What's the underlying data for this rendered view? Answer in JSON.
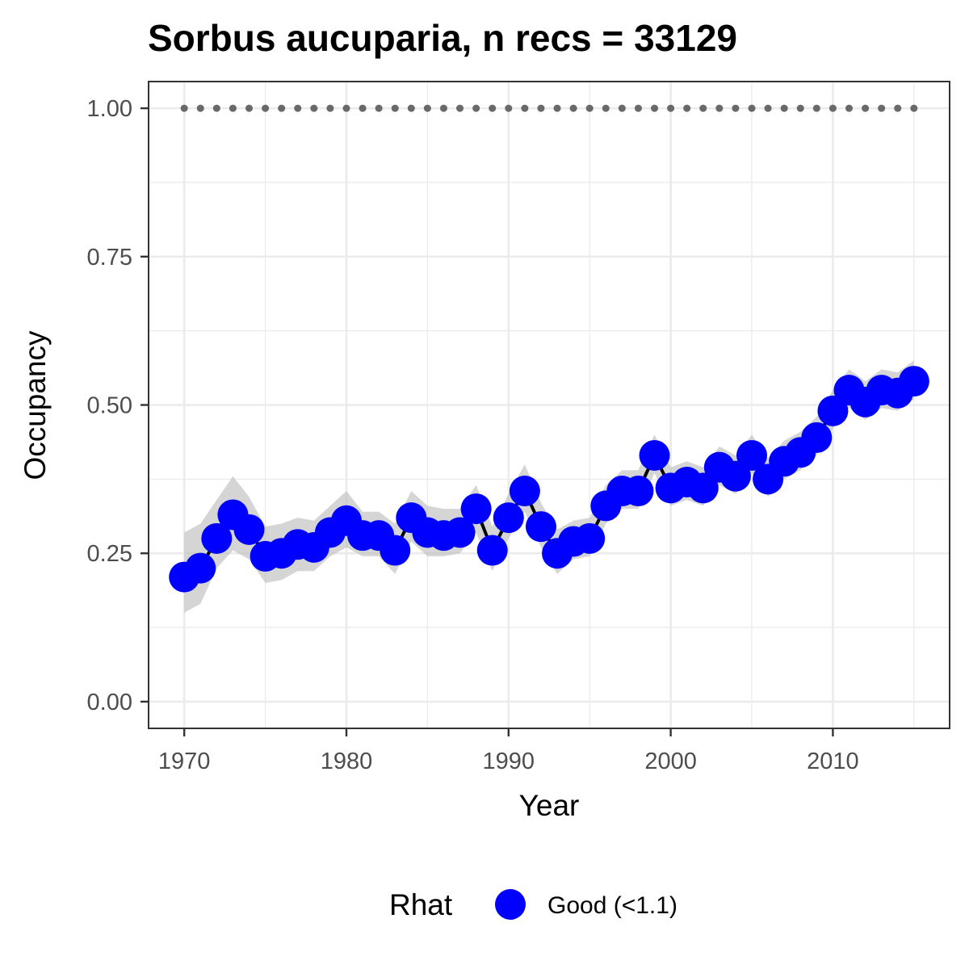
{
  "chart_data": {
    "type": "line",
    "title": "Sorbus aucuparia, n recs = 33129",
    "xlabel": "Year",
    "ylabel": "Occupancy",
    "xlim": [
      1967.8,
      2017.2
    ],
    "ylim": [
      -0.045,
      1.045
    ],
    "x_ticks": [
      1970,
      1980,
      1990,
      2000,
      2010
    ],
    "x_tick_labels": [
      "1970",
      "1980",
      "1990",
      "2000",
      "2010"
    ],
    "y_ticks": [
      0,
      0.25,
      0.5,
      0.75,
      1.0
    ],
    "y_tick_labels": [
      "0.00",
      "0.25",
      "0.50",
      "0.75",
      "1.00"
    ],
    "grid": true,
    "legend": {
      "title": "Rhat",
      "position": "bottom",
      "items": [
        {
          "label": "Good (<1.1)",
          "color": "#0000ff"
        }
      ]
    },
    "colors": {
      "points": "#0000ff",
      "line": "#000000",
      "ribbon": "#bfbfbf",
      "reference": "#696969",
      "grid": "#ebebeb",
      "panel_border": "#333333"
    },
    "reference_line": {
      "y": 1.0,
      "style": "dotted"
    },
    "x": [
      1970,
      1971,
      1972,
      1973,
      1974,
      1975,
      1976,
      1977,
      1978,
      1979,
      1980,
      1981,
      1982,
      1983,
      1984,
      1985,
      1986,
      1987,
      1988,
      1989,
      1990,
      1991,
      1992,
      1993,
      1994,
      1995,
      1996,
      1997,
      1998,
      1999,
      2000,
      2001,
      2002,
      2003,
      2004,
      2005,
      2006,
      2007,
      2008,
      2009,
      2010,
      2011,
      2012,
      2013,
      2014,
      2015
    ],
    "series": [
      {
        "name": "Occupancy",
        "values": [
          0.21,
          0.225,
          0.275,
          0.315,
          0.29,
          0.245,
          0.25,
          0.265,
          0.26,
          0.285,
          0.305,
          0.28,
          0.28,
          0.255,
          0.31,
          0.285,
          0.28,
          0.285,
          0.325,
          0.255,
          0.31,
          0.355,
          0.295,
          0.25,
          0.27,
          0.275,
          0.33,
          0.355,
          0.355,
          0.415,
          0.36,
          0.37,
          0.36,
          0.395,
          0.38,
          0.415,
          0.375,
          0.405,
          0.42,
          0.445,
          0.49,
          0.525,
          0.505,
          0.525,
          0.52,
          0.54
        ],
        "lower": [
          0.15,
          0.165,
          0.225,
          0.255,
          0.24,
          0.2,
          0.205,
          0.22,
          0.22,
          0.245,
          0.26,
          0.245,
          0.245,
          0.215,
          0.27,
          0.245,
          0.245,
          0.25,
          0.285,
          0.22,
          0.275,
          0.32,
          0.26,
          0.215,
          0.24,
          0.245,
          0.3,
          0.325,
          0.325,
          0.385,
          0.33,
          0.34,
          0.33,
          0.365,
          0.35,
          0.385,
          0.345,
          0.375,
          0.39,
          0.415,
          0.46,
          0.495,
          0.475,
          0.495,
          0.49,
          0.51
        ],
        "upper": [
          0.285,
          0.3,
          0.34,
          0.38,
          0.345,
          0.295,
          0.3,
          0.31,
          0.305,
          0.33,
          0.355,
          0.32,
          0.32,
          0.3,
          0.355,
          0.33,
          0.325,
          0.325,
          0.365,
          0.295,
          0.35,
          0.4,
          0.335,
          0.29,
          0.305,
          0.31,
          0.365,
          0.39,
          0.39,
          0.45,
          0.395,
          0.405,
          0.395,
          0.43,
          0.415,
          0.45,
          0.41,
          0.44,
          0.455,
          0.48,
          0.525,
          0.56,
          0.54,
          0.56,
          0.555,
          0.575
        ]
      },
      {
        "name": "Reference (1.00)",
        "values": [
          1,
          1,
          1,
          1,
          1,
          1,
          1,
          1,
          1,
          1,
          1,
          1,
          1,
          1,
          1,
          1,
          1,
          1,
          1,
          1,
          1,
          1,
          1,
          1,
          1,
          1,
          1,
          1,
          1,
          1,
          1,
          1,
          1,
          1,
          1,
          1,
          1,
          1,
          1,
          1,
          1,
          1,
          1,
          1,
          1,
          1
        ]
      }
    ]
  }
}
